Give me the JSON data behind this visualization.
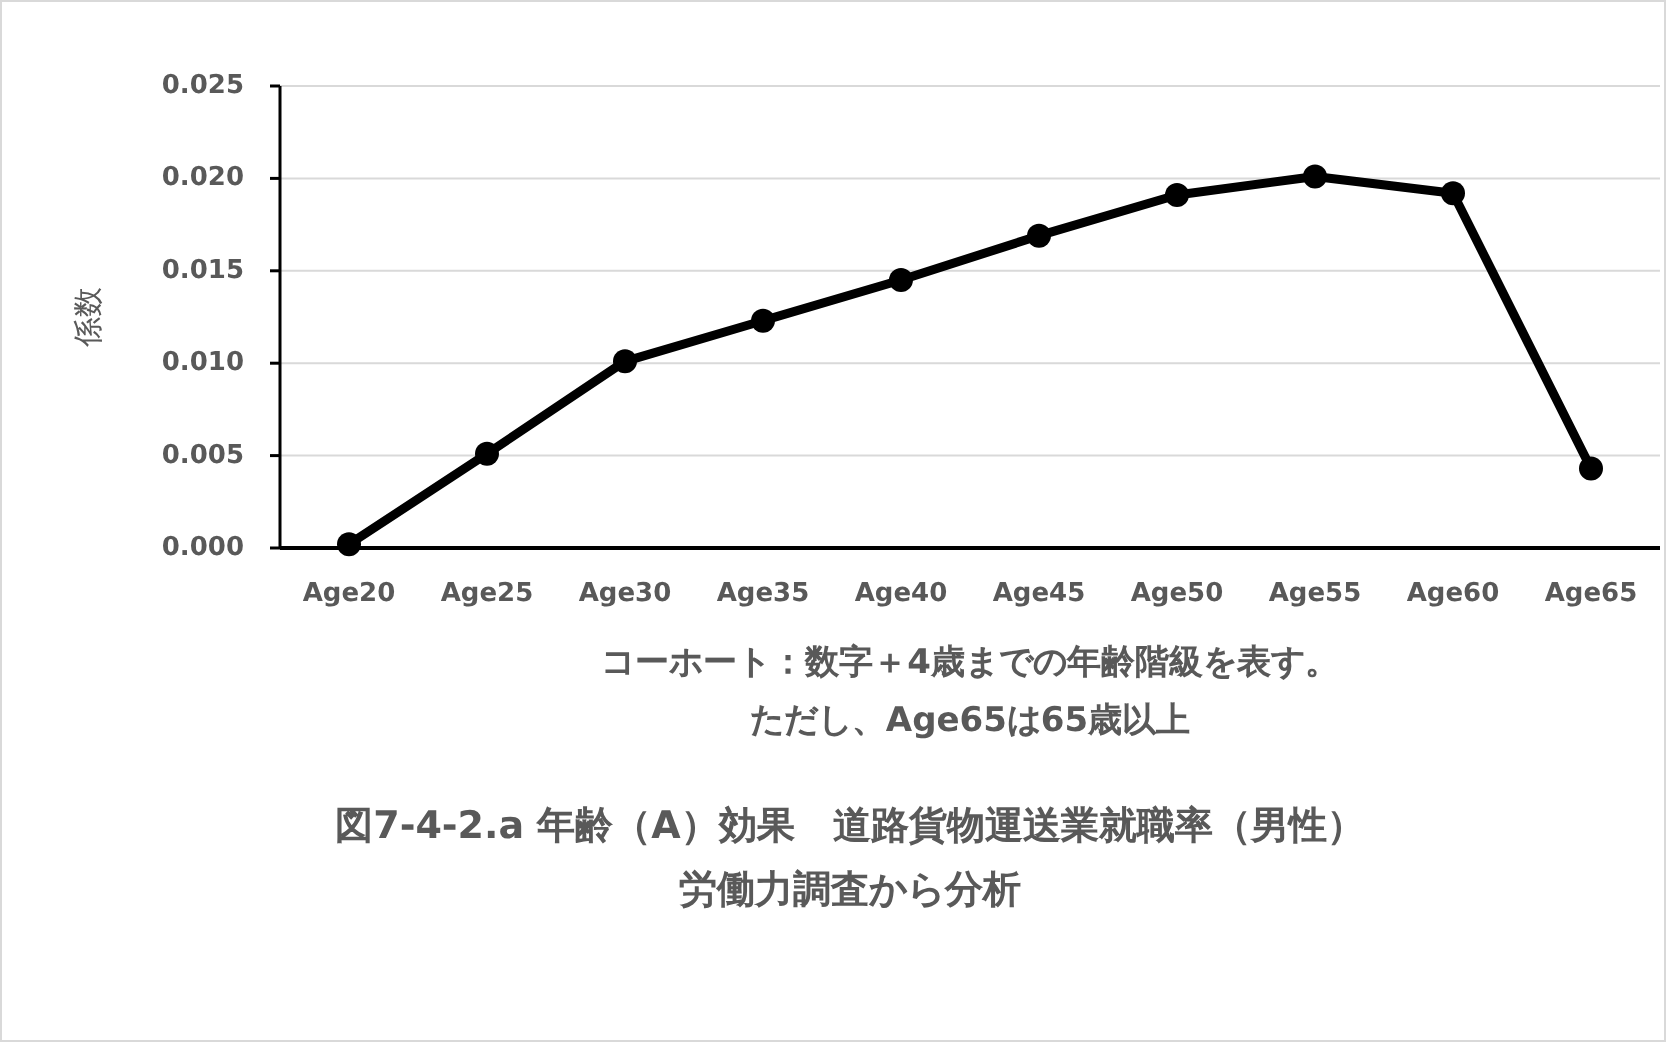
{
  "chart_data": {
    "type": "line",
    "title": "図7-4-2.a 年齢（A）効果　道路貨物運送業就職率（男性）",
    "subtitle": "労働力調査から分析",
    "xlabel": "コーホート：数字＋4歳までの年齢階級を表す。",
    "annotations": [
      "ただし、Age65は65歳以上"
    ],
    "ylabel": "係数",
    "categories": [
      "Age20",
      "Age25",
      "Age30",
      "Age35",
      "Age40",
      "Age45",
      "Age50",
      "Age55",
      "Age60",
      "Age65"
    ],
    "series": [
      {
        "color": "#000000",
        "values": [
          0.0002,
          0.0051,
          0.0101,
          0.0123,
          0.0145,
          0.0169,
          0.0191,
          0.0201,
          0.0192,
          0.0043
        ]
      }
    ],
    "ylim": [
      0,
      0.025
    ],
    "yticks": [
      {
        "value": 0,
        "label": "0.000"
      },
      {
        "value": 0.005,
        "label": "0.005"
      },
      {
        "value": 0.01,
        "label": "0.010"
      },
      {
        "value": 0.015,
        "label": "0.015"
      },
      {
        "value": 0.02,
        "label": "0.020"
      },
      {
        "value": 0.025,
        "label": "0.025"
      }
    ],
    "grid": "y",
    "marker": "circle",
    "line_style": "solid"
  }
}
